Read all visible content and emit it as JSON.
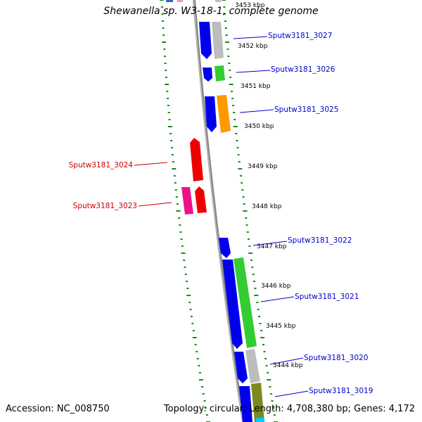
{
  "title": "Shewanella sp. W3-18-1, complete genome",
  "footer": {
    "accession": "Accession: NC_008750",
    "topology": "Topology: circular; Length: 4,708,380 bp; Genes: 4,172"
  },
  "colors": {
    "backbone": "#808080",
    "tick": "#1a8a1a",
    "label_forward": "#0000cc",
    "label_reverse": "#cc0000"
  },
  "kbp_labels": [
    "3453 kbp",
    "3452 kbp",
    "3451 kbp",
    "3450 kbp",
    "3449 kbp",
    "3448 kbp",
    "3447 kbp",
    "3446 kbp",
    "3445 kbp",
    "3444 kbp"
  ],
  "gene_labels": [
    {
      "text": "Sputw3181_3027",
      "strand": "forward"
    },
    {
      "text": "Sputw3181_3026",
      "strand": "forward"
    },
    {
      "text": "Sputw3181_3025",
      "strand": "forward"
    },
    {
      "text": "Sputw3181_3024",
      "strand": "reverse"
    },
    {
      "text": "Sputw3181_3023",
      "strand": "reverse"
    },
    {
      "text": "Sputw3181_3022",
      "strand": "forward"
    },
    {
      "text": "Sputw3181_3021",
      "strand": "forward"
    },
    {
      "text": "Sputw3181_3020",
      "strand": "forward"
    },
    {
      "text": "Sputw3181_3019",
      "strand": "forward"
    }
  ]
}
